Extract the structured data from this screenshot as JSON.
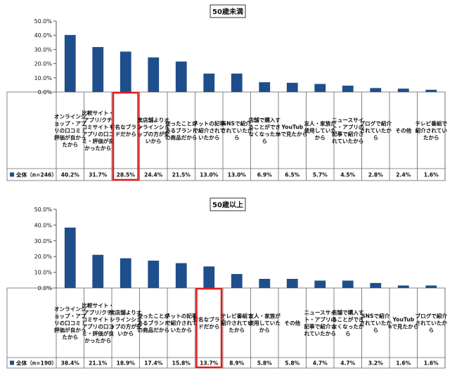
{
  "chart_data": [
    {
      "type": "bar",
      "title": "50歳未満",
      "ylim": [
        0,
        50
      ],
      "y_ticks": [
        "0.0%",
        "10.0%",
        "20.0%",
        "30.0%",
        "40.0%",
        "50.0%"
      ],
      "grid": false,
      "series": [
        {
          "name": "全体（n=246）",
          "color": "#1f4e8c"
        }
      ],
      "categories": [
        "オンラインショップ・アプリの口コミ・評価が良かったから",
        "比較サイト・アプリ/クチコミサイト・アプリの口コミ・評価が良かったから",
        "有名なブランドだから",
        "実店舗よりオンラインショップの方が安いから",
        "使ったことがあるブランドの商品だから",
        "ネットの記事で紹介されていたから",
        "SNSで紹介されていたから",
        "店舗で購入することができなくなったから",
        "YouTubeで見たから",
        "友人・家族が使用していたから",
        "ニュースサイト・アプリの記事で紹介されていたから",
        "ブログで紹介されていたから",
        "その他",
        "テレビ番組で紹介されていたから"
      ],
      "values": [
        40.2,
        31.7,
        28.5,
        24.4,
        21.5,
        13.0,
        13.0,
        6.9,
        6.5,
        5.7,
        4.5,
        2.8,
        2.4,
        1.6
      ],
      "value_labels": [
        "40.2%",
        "31.7%",
        "28.5%",
        "24.4%",
        "21.5%",
        "13.0%",
        "13.0%",
        "6.9%",
        "6.5%",
        "5.7%",
        "4.5%",
        "2.8%",
        "2.4%",
        "1.6%"
      ],
      "highlight_index": 2,
      "highlight_color": "#e41e1e"
    },
    {
      "type": "bar",
      "title": "50歳以上",
      "ylim": [
        0,
        50
      ],
      "y_ticks": [
        "0.0%",
        "10.0%",
        "20.0%",
        "30.0%",
        "40.0%",
        "50.0%"
      ],
      "grid": false,
      "series": [
        {
          "name": "全体（n=190）",
          "color": "#1f4e8c"
        }
      ],
      "categories": [
        "オンラインショップ・アプリの口コミ・評価が良かったから",
        "比較サイト・アプリ/クチコミサイト・アプリの口コミ・評価が良かったから",
        "実店舗よりオンラインショップの方が安いから",
        "使ったことがあるブランドの商品だから",
        "ネットの記事で紹介されていたから",
        "有名なブランドだから",
        "テレビ番組で紹介されていたから",
        "友人・家族が使用していたから",
        "その他",
        "ニュースサイト・アプリの記事で紹介されていたから",
        "店舗で購入することができなくなったから",
        "SNSで紹介されていたから",
        "YouTubeで見たから",
        "ブログで紹介されていたから"
      ],
      "values": [
        38.4,
        21.1,
        18.9,
        17.4,
        15.8,
        13.7,
        8.9,
        5.8,
        5.8,
        4.7,
        4.7,
        3.2,
        1.6,
        1.6
      ],
      "value_labels": [
        "38.4%",
        "21.1%",
        "18.9%",
        "17.4%",
        "15.8%",
        "13.7%",
        "8.9%",
        "5.8%",
        "5.8%",
        "4.7%",
        "4.7%",
        "3.2%",
        "1.6%",
        "1.6%"
      ],
      "highlight_index": 5,
      "highlight_color": "#e41e1e"
    }
  ]
}
